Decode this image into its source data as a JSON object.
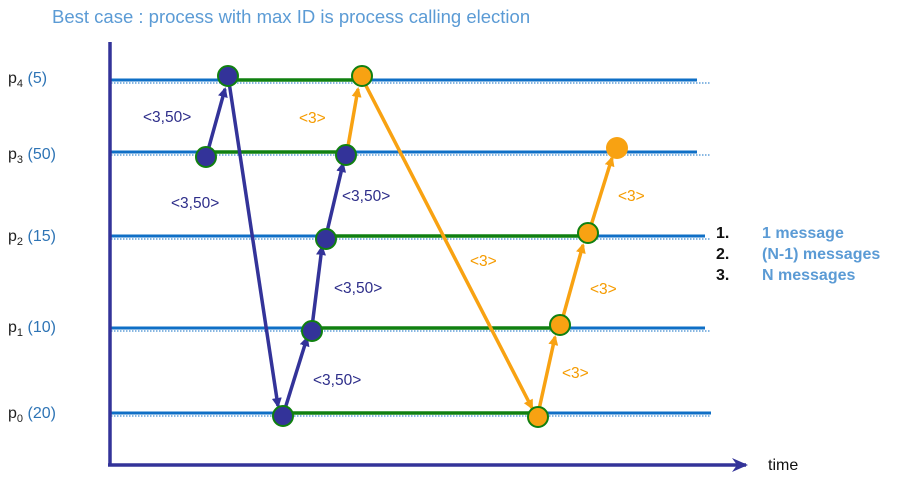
{
  "title": "Best case : process with max ID is process calling election",
  "processes": [
    {
      "name": "p",
      "sub": "4",
      "id": "(5)"
    },
    {
      "name": "p",
      "sub": "3",
      "id": "(50)"
    },
    {
      "name": "p",
      "sub": "2",
      "id": "(15)"
    },
    {
      "name": "p",
      "sub": "1",
      "id": "(10)"
    },
    {
      "name": "p",
      "sub": "0",
      "id": "(20)"
    }
  ],
  "election_messages": [
    "<3,50>",
    "<3,50>",
    "<3,50>",
    "<3,50>",
    "<3,50>"
  ],
  "coordinator_messages": [
    "<3>",
    "<3>",
    "<3>",
    "<3>",
    "<3>"
  ],
  "axis_label": "time",
  "message_counts": [
    {
      "num": "1.",
      "text": "1 message"
    },
    {
      "num": "2.",
      "text": "(N-1) messages"
    },
    {
      "num": "3.",
      "text": "N messages"
    }
  ],
  "colors": {
    "timeline": "#0f6fc6",
    "active_segment": "#108010",
    "election_arrow": "#333399",
    "coordinator_arrow": "#f8a212",
    "title": "#5b9bd5"
  }
}
